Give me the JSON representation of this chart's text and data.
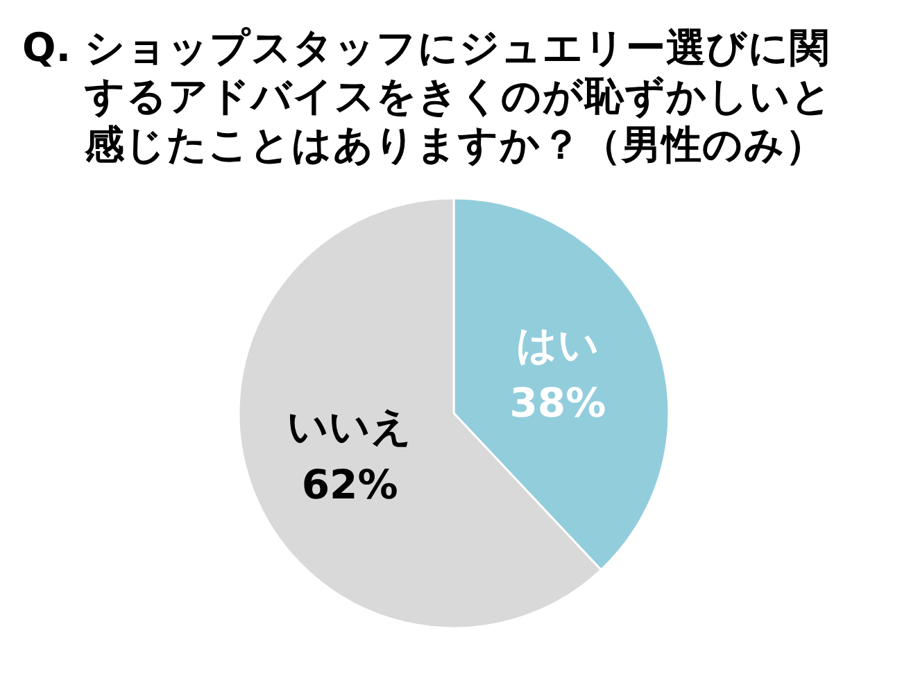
{
  "chart_data": {
    "type": "pie",
    "title": "Q. ショップスタッフにジュエリー選びに関するアドバイスをきくのが恥ずかしいと感じたことはありますか？（男性のみ）",
    "categories": [
      "はい",
      "いいえ"
    ],
    "values": [
      38,
      62
    ],
    "colors": [
      "#92cddc",
      "#d9d9d9"
    ],
    "value_labels": [
      "38%",
      "62%"
    ]
  }
}
